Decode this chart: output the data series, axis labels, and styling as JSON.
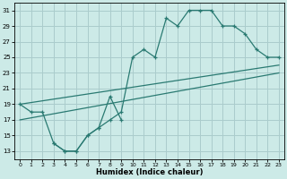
{
  "xlabel": "Humidex (Indice chaleur)",
  "x_ticks": [
    0,
    1,
    2,
    3,
    4,
    5,
    6,
    7,
    8,
    9,
    10,
    11,
    12,
    13,
    14,
    15,
    16,
    17,
    18,
    19,
    20,
    21,
    22,
    23
  ],
  "y_ticks": [
    13,
    15,
    17,
    19,
    21,
    23,
    25,
    27,
    29,
    31
  ],
  "xlim": [
    -0.5,
    23.5
  ],
  "ylim": [
    12,
    32
  ],
  "background_color": "#cceae7",
  "grid_color": "#aacccc",
  "line_color": "#2a7a72",
  "jagged_x": [
    0,
    1,
    2,
    3,
    4,
    5,
    6,
    7,
    8,
    9,
    10,
    11,
    12,
    13,
    14,
    15,
    16,
    17,
    18,
    19,
    20,
    21,
    22,
    23
  ],
  "jagged_y": [
    19,
    18,
    18,
    14,
    13,
    13,
    15,
    16,
    17,
    18,
    25,
    26,
    25,
    30,
    29,
    31,
    31,
    31,
    29,
    29,
    28,
    26,
    25,
    25
  ],
  "jagged2_x": [
    3,
    4,
    5,
    6,
    7,
    8,
    9
  ],
  "jagged2_y": [
    14,
    13,
    13,
    15,
    16,
    20,
    17
  ],
  "trend1_x": [
    0,
    23
  ],
  "trend1_y": [
    19,
    24
  ],
  "trend2_x": [
    0,
    23
  ],
  "trend2_y": [
    17,
    23
  ]
}
